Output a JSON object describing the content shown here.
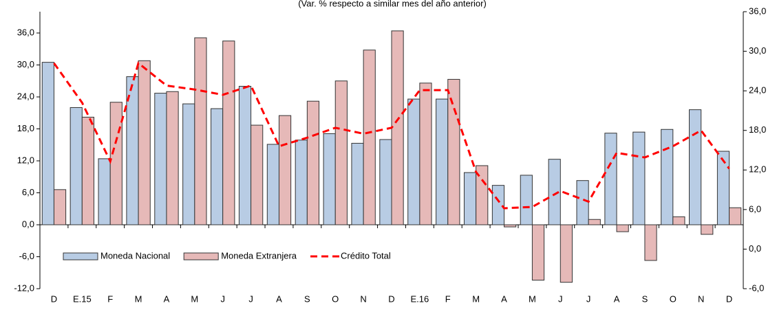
{
  "chart_data": {
    "type": "bar",
    "title": "(Var. % respecto a similar mes del año anterior)",
    "categories": [
      "D",
      "E.15",
      "F",
      "M",
      "A",
      "M",
      "J",
      "J",
      "A",
      "S",
      "O",
      "N",
      "D",
      "E.16",
      "F",
      "M",
      "A",
      "M",
      "J",
      "J",
      "A",
      "S",
      "O",
      "N",
      "D"
    ],
    "series": [
      {
        "name": "Moneda Nacional",
        "type": "bar",
        "color": "#b8cce4",
        "values": [
          30.5,
          22.0,
          12.4,
          27.8,
          24.7,
          22.7,
          21.8,
          26.0,
          15.1,
          15.9,
          17.1,
          15.3,
          16.0,
          23.6,
          23.6,
          9.8,
          7.4,
          9.3,
          12.3,
          8.3,
          17.2,
          17.4,
          17.9,
          21.6,
          13.8
        ]
      },
      {
        "name": "Moneda Extranjera",
        "type": "bar",
        "color": "#e6b9b8",
        "values": [
          6.6,
          20.2,
          23.0,
          30.8,
          25.0,
          35.1,
          34.5,
          18.7,
          20.5,
          23.2,
          27.0,
          32.8,
          36.4,
          26.6,
          27.3,
          11.1,
          -0.4,
          -10.4,
          -10.8,
          1.0,
          -1.3,
          -6.7,
          1.5,
          -1.8,
          3.2
        ]
      },
      {
        "name": "Crédito Total",
        "type": "line",
        "axis": "y2",
        "color": "#ff0000",
        "values": [
          28.2,
          22.2,
          13.3,
          28.2,
          24.8,
          24.2,
          23.4,
          24.8,
          15.6,
          16.9,
          18.4,
          17.5,
          18.4,
          24.1,
          24.1,
          11.7,
          6.2,
          6.4,
          8.8,
          7.2,
          14.6,
          13.9,
          15.6,
          18.0,
          12.2
        ]
      }
    ],
    "ylim": [
      -12,
      40
    ],
    "yticks": [
      {
        "value": -12,
        "label": "-12,0"
      },
      {
        "value": -6,
        "label": "-6,0"
      },
      {
        "value": 0,
        "label": "0,0"
      },
      {
        "value": 6,
        "label": "6,0"
      },
      {
        "value": 12,
        "label": "12,0"
      },
      {
        "value": 18,
        "label": "18,0"
      },
      {
        "value": 24,
        "label": "24,0"
      },
      {
        "value": 30,
        "label": "30,0"
      },
      {
        "value": 36,
        "label": "36,0"
      }
    ],
    "y2lim": [
      -6,
      36
    ],
    "y2ticks": [
      {
        "value": -6,
        "label": "-6,0"
      },
      {
        "value": 0,
        "label": "0,0"
      },
      {
        "value": 6,
        "label": "6,0"
      },
      {
        "value": 12,
        "label": "12,0"
      },
      {
        "value": 18,
        "label": "18,0"
      },
      {
        "value": 24,
        "label": "24,0"
      },
      {
        "value": 30,
        "label": "30,0"
      },
      {
        "value": 36,
        "label": "36,0"
      }
    ],
    "grid": false
  }
}
